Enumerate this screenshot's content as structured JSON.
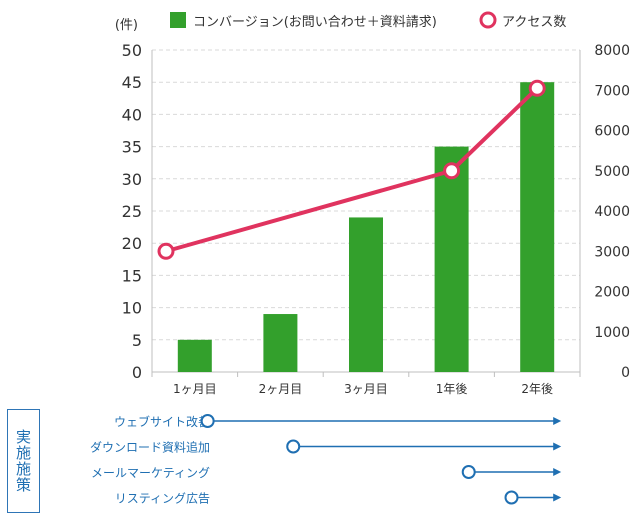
{
  "chart_data": {
    "type": "bar",
    "categories": [
      "1ヶ月目",
      "2ヶ月目",
      "3ヶ月目",
      "1年後",
      "2年後"
    ],
    "series": [
      {
        "name": "コンバージョン(お問い合わせ＋資料請求)",
        "kind": "bar",
        "axis": "left",
        "color": "#33a02c",
        "values": [
          5,
          9,
          24,
          35,
          45
        ]
      },
      {
        "name": "アクセス数",
        "kind": "line",
        "axis": "right",
        "color": "#e0335f",
        "values": [
          3000,
          null,
          null,
          5000,
          7050
        ]
      }
    ],
    "line_x_categories": [
      "1ヶ月目",
      "1年後",
      "2年後"
    ],
    "ylabel": "(件)",
    "ylim": [
      0,
      50
    ],
    "yticks": [
      0,
      5,
      10,
      15,
      20,
      25,
      30,
      35,
      40,
      45,
      50
    ],
    "y2lim": [
      0,
      8000
    ],
    "y2ticks": [
      0,
      1000,
      2000,
      3000,
      4000,
      5000,
      6000,
      7000,
      8000
    ],
    "grid": true,
    "legend_position": "top"
  },
  "measures": {
    "label": "実施施策",
    "color": "#1f6fb2",
    "items": [
      {
        "name": "ウェブサイト改善",
        "start": 0.65
      },
      {
        "name": "ダウンロード資料追加",
        "start": 1.65
      },
      {
        "name": "メールマーケティング",
        "start": 3.7
      },
      {
        "name": "リスティング広告",
        "start": 4.2
      }
    ],
    "end": 4.5
  }
}
